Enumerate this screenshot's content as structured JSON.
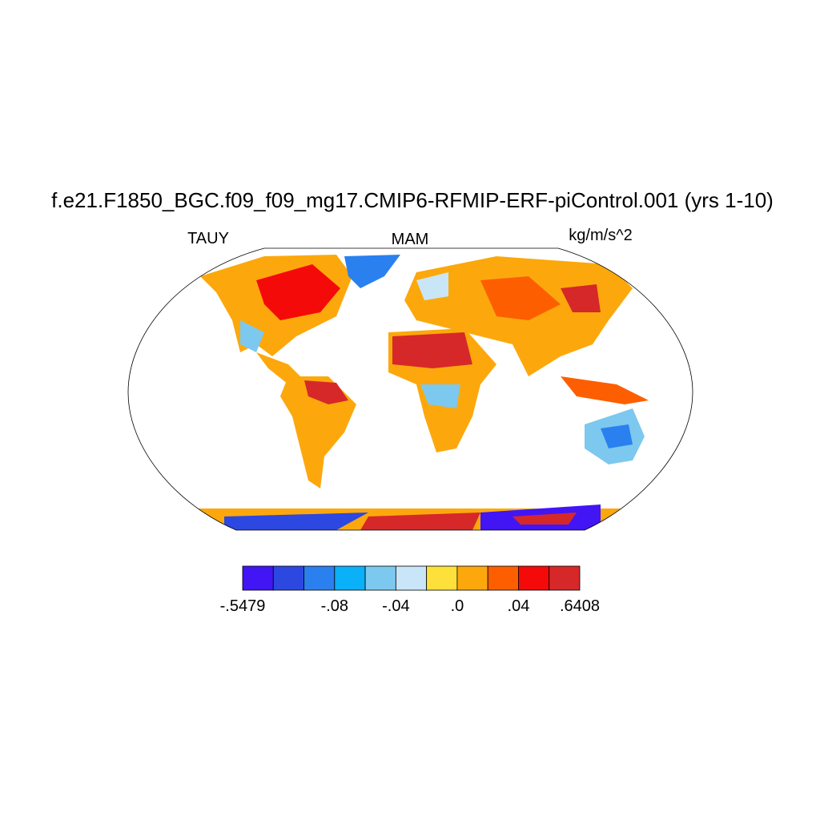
{
  "title": "f.e21.F1850_BGC.f09_f09_mg17.CMIP6-RFMIP-ERF-piControl.001 (yrs 1-10)",
  "left_string": "TAUY",
  "center_string": "MAM",
  "right_string": "kg/m/s^2",
  "colorbar": {
    "colors": [
      "#4215f5",
      "#2c48e0",
      "#2a80ef",
      "#0ab0f8",
      "#7dc8ee",
      "#c9e6f8",
      "#fde039",
      "#fca80c",
      "#fd5e00",
      "#f50a0a",
      "#d62828"
    ],
    "labels": [
      "-.5479",
      null,
      null,
      "-.08",
      null,
      "-.04",
      null,
      ".0",
      null,
      ".04",
      null,
      ".6408"
    ]
  }
}
